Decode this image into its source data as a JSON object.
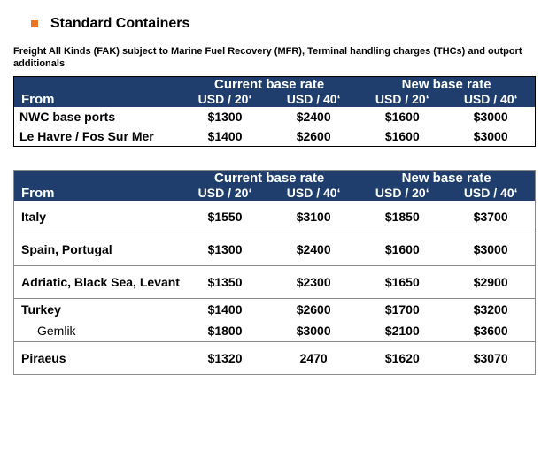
{
  "colors": {
    "header_bg": "#1f3e6e",
    "header_text": "#ffffff",
    "bullet": "#e97425",
    "text": "#000000",
    "border_dark": "#000000",
    "border_light": "#8a8a8a",
    "background": "#ffffff"
  },
  "heading": "Standard Containers",
  "subnote": "Freight All Kinds (FAK) subject to Marine Fuel Recovery (MFR), Terminal handling charges (THCs) and outport additionals",
  "headers": {
    "from": "From",
    "current": "Current base rate",
    "new": "New base rate",
    "u20": "USD / 20‘",
    "u40": "USD / 40‘"
  },
  "table1": {
    "rows": [
      {
        "origin": "NWC base ports",
        "c20": "$1300",
        "c40": "$2400",
        "n20": "$1600",
        "n40": "$3000"
      },
      {
        "origin": "Le Havre / Fos Sur Mer",
        "c20": "$1400",
        "c40": "$2600",
        "n20": "$1600",
        "n40": "$3000"
      }
    ]
  },
  "table2": {
    "rows": [
      {
        "origin": "Italy",
        "c20": "$1550",
        "c40": "$3100",
        "n20": "$1850",
        "n40": "$3700",
        "sep": true
      },
      {
        "origin": "Spain, Portugal",
        "c20": "$1300",
        "c40": "$2400",
        "n20": "$1600",
        "n40": "$3000",
        "sep": true
      },
      {
        "origin": "Adriatic, Black Sea, Levant",
        "c20": "$1350",
        "c40": "$2300",
        "n20": "$1650",
        "n40": "$2900",
        "sep": true
      },
      {
        "origin": "Turkey",
        "c20": "$1400",
        "c40": "$2600",
        "n20": "$1700",
        "n40": "$3200",
        "sep": false,
        "tight": true
      },
      {
        "origin": "Gemlik",
        "c20": "$1800",
        "c40": "$3000",
        "n20": "$2100",
        "n40": "$3600",
        "sep": true,
        "tight": true,
        "indent": true
      },
      {
        "origin": "Piraeus",
        "c20": "$1320",
        "c40": "2470",
        "n20": "$1620",
        "n40": "$3070",
        "sep": true
      }
    ]
  }
}
